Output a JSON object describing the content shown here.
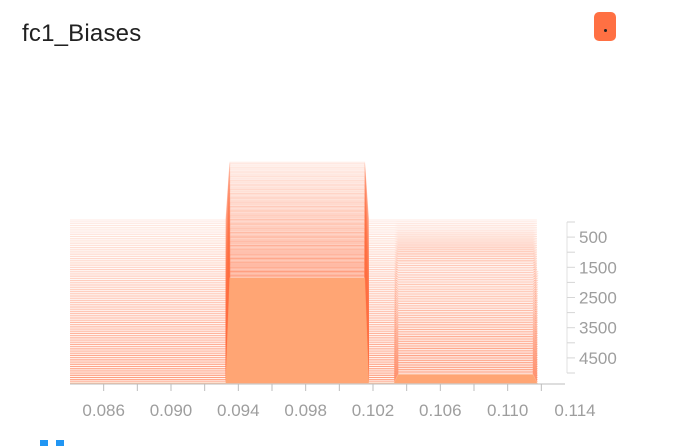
{
  "title": "fc1_Biases",
  "accent_color": "#ff7043",
  "badge": {
    "icon": "more-options-icon"
  },
  "bottom_control": {
    "icon": "expand-toggle-icon",
    "color": "#2196f3"
  },
  "chart_data": {
    "type": "histogram",
    "mode": "offset",
    "title": "fc1_Biases",
    "xlabel": "",
    "ylabel": "",
    "xlim": [
      0.084,
      0.114
    ],
    "x_ticks": [
      "0.086",
      "0.090",
      "0.094",
      "0.098",
      "0.102",
      "0.106",
      "0.110",
      "0.114"
    ],
    "x_tick_values": [
      0.086,
      0.09,
      0.094,
      0.098,
      0.102,
      0.106,
      0.11,
      0.114
    ],
    "step_range": [
      0,
      5000
    ],
    "y_ticks": [
      "500",
      "1500",
      "2500",
      "3500",
      "4500"
    ],
    "y_tick_values": [
      500,
      1500,
      2500,
      3500,
      4500
    ],
    "grid": false,
    "series_color": "#ff7043",
    "bins": [
      {
        "range": [
          0.0855,
          0.0925
        ],
        "count": 0
      },
      {
        "range": [
          0.0935,
          0.1015
        ],
        "count": 5
      },
      {
        "range": [
          0.1035,
          0.1115
        ],
        "count": 0.4
      }
    ],
    "step_profile": [
      {
        "step": 0,
        "count": [
          0,
          5,
          0
        ]
      },
      {
        "step": 500,
        "count": [
          0,
          5,
          0.05
        ]
      },
      {
        "step": 1500,
        "count": [
          0,
          5,
          0.15
        ]
      },
      {
        "step": 2500,
        "count": [
          0,
          5,
          0.25
        ]
      },
      {
        "step": 3500,
        "count": [
          0,
          5,
          0.32
        ]
      },
      {
        "step": 4500,
        "count": [
          0,
          5,
          0.38
        ]
      },
      {
        "step": 5000,
        "count": [
          0,
          5,
          0.4
        ]
      }
    ]
  }
}
